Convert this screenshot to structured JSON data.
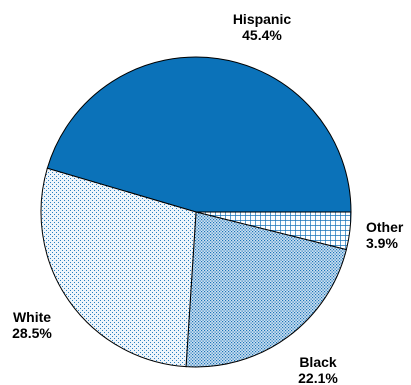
{
  "chart_data": {
    "type": "pie",
    "slices": [
      {
        "label": "Hispanic",
        "value": 45.4,
        "value_label": "45.4%",
        "fill": "solid",
        "color": "#0b72b9"
      },
      {
        "label": "Other",
        "value": 3.9,
        "value_label": "3.9%",
        "fill": "grid",
        "color": "#1a73b8"
      },
      {
        "label": "Black",
        "value": 22.1,
        "value_label": "22.1%",
        "fill": "dense-dots",
        "color": "#1a73b8"
      },
      {
        "label": "White",
        "value": 28.5,
        "value_label": "28.5%",
        "fill": "sparse-dots",
        "color": "#2a80c0"
      }
    ],
    "start_direction": "right (3 o'clock)",
    "order": "counter-clockwise from 3 o'clock: Hispanic, then clockwise: Other, Black, White",
    "legend": "none (direct labels)"
  }
}
